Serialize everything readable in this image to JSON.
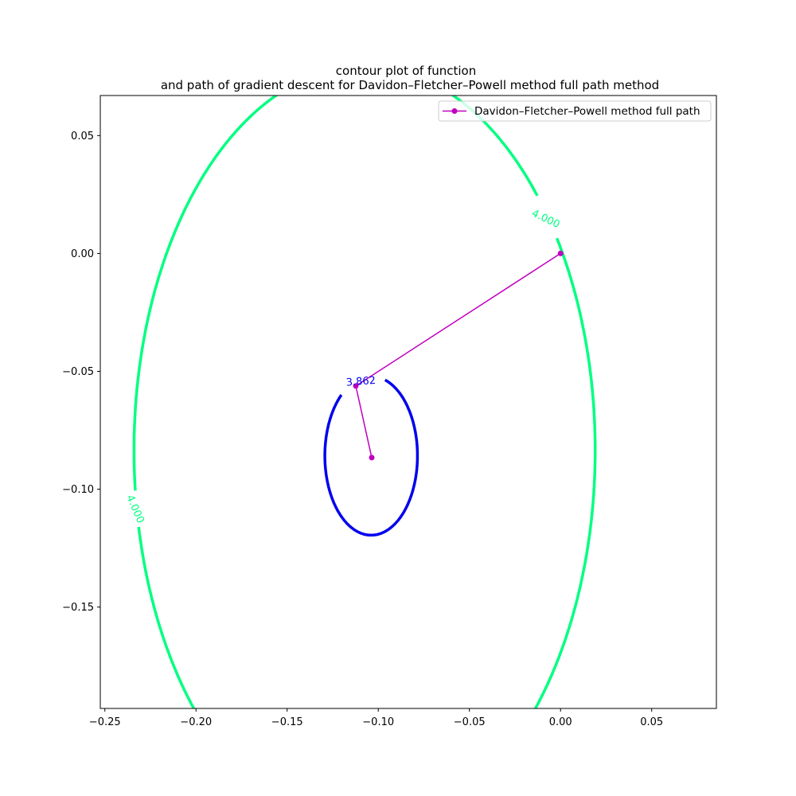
{
  "chart_data": {
    "type": "line",
    "title": "contour plot of function",
    "subtitle": "and path of gradient descent for Davidon–Fletcher–Powell method full path method",
    "xlabel": "",
    "ylabel": "",
    "xlim": [
      -0.2525,
      0.0855
    ],
    "ylim": [
      -0.193,
      0.067
    ],
    "xticks": [
      -0.25,
      -0.2,
      -0.15,
      -0.1,
      -0.05,
      0.0,
      0.05
    ],
    "xtick_labels": [
      "−0.25",
      "−0.20",
      "−0.15",
      "−0.10",
      "−0.05",
      "0.00",
      "0.05"
    ],
    "yticks": [
      0.05,
      0.0,
      -0.05,
      -0.1,
      -0.15
    ],
    "ytick_labels": [
      "0.05",
      "0.00",
      "−0.05",
      "−0.10",
      "−0.15"
    ],
    "grid": false,
    "legend_position": "upper right",
    "series": [
      {
        "name": "Davidon–Fletcher–Powell method full path",
        "color": "#c000c0",
        "marker": "circle",
        "x": [
          0.0,
          -0.1123,
          -0.1036
        ],
        "y": [
          0.0,
          -0.0562,
          -0.0866
        ]
      }
    ],
    "contours": [
      {
        "level": 4.0,
        "label": "4.000",
        "color": "#00ff80",
        "center": [
          -0.1075,
          -0.0835
        ],
        "radius_x": 0.1265,
        "radius_y": 0.163,
        "label_positions": [
          [
            -0.0082,
            0.0145
          ],
          [
            -0.2335,
            -0.1085
          ]
        ]
      },
      {
        "level": 3.862,
        "label": "3.862",
        "color": "#0000ee",
        "center": [
          -0.1039,
          -0.0858
        ],
        "radius_x": 0.0254,
        "radius_y": 0.0337,
        "label_positions": [
          [
            -0.1095,
            -0.0545
          ]
        ]
      }
    ]
  }
}
